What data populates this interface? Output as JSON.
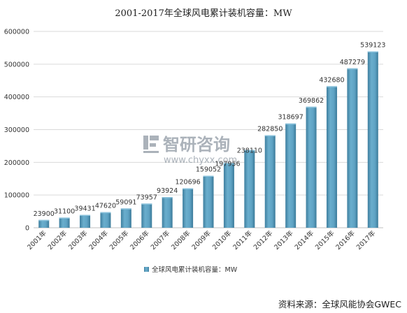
{
  "chart_data": {
    "type": "bar",
    "title": "2001-2017年全球风电累计装机容量：MW",
    "categories": [
      "2001年",
      "2002年",
      "2003年",
      "2004年",
      "2005年",
      "2006年",
      "2007年",
      "2008年",
      "2009年",
      "2010年",
      "2011年",
      "2012年",
      "2013年",
      "2014年",
      "2015年",
      "2016年",
      "2017年"
    ],
    "series": [
      {
        "name": "全球风电累计装机容量：MW",
        "values": [
          23900,
          31100,
          39431,
          47620,
          59091,
          73957,
          93924,
          120696,
          159052,
          197956,
          238110,
          282850,
          318697,
          369862,
          432680,
          487279,
          539123
        ],
        "labels": [
          "23900",
          "31100",
          "39431",
          "47620",
          "59091",
          "73957",
          "93924",
          "120696",
          "159052",
          "197956",
          "238110",
          "282850",
          "318697",
          "369862",
          "432680",
          "487279",
          "539123"
        ]
      }
    ],
    "ylim": [
      0,
      600000
    ],
    "yticks": [
      "0",
      "100000",
      "200000",
      "300000",
      "400000",
      "500000",
      "600000"
    ],
    "grid": true,
    "legend_position": "bottom",
    "colors": {
      "bar": "#5fa3c4",
      "bar_dark": "#3f7f9f",
      "bar_light": "#8cc3dc",
      "grid": "#d9d9d9",
      "axis": "#bfbfbf"
    }
  },
  "watermark": {
    "name": "智研咨询",
    "url": "www.chyxx.com",
    "icon": "chyxx-logo-icon"
  },
  "source": "资料来源：全球风能协会GWEC"
}
